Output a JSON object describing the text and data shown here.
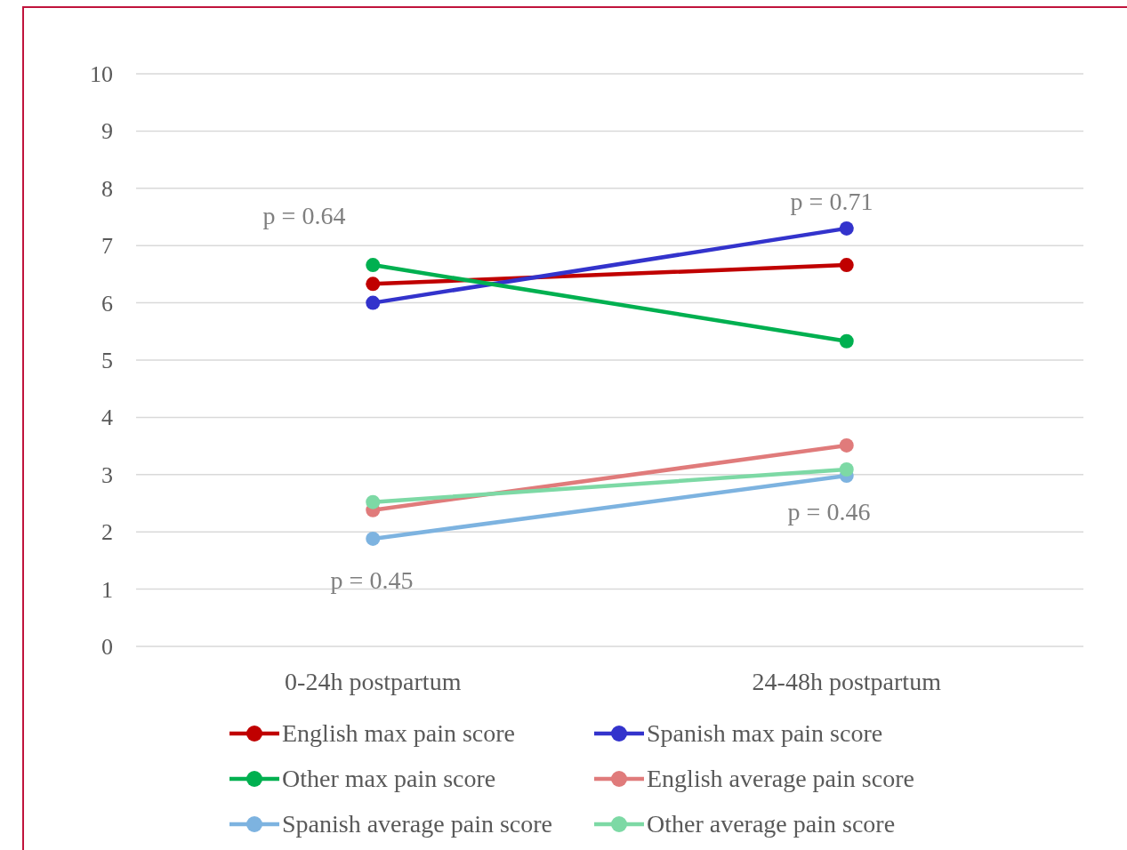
{
  "chart_data": {
    "type": "line",
    "categories": [
      "0-24h postpartum",
      "24-48h postpartum"
    ],
    "series": [
      {
        "name": "English max pain score",
        "color": "#c00000",
        "values": [
          6.33,
          6.66
        ]
      },
      {
        "name": "Spanish max pain score",
        "color": "#3333cc",
        "values": [
          6.0,
          7.3
        ]
      },
      {
        "name": "Other max pain score",
        "color": "#00b050",
        "values": [
          6.66,
          5.33
        ]
      },
      {
        "name": "English average pain score",
        "color": "#e07b7b",
        "values": [
          2.38,
          3.51
        ]
      },
      {
        "name": "Spanish average pain score",
        "color": "#7db3e0",
        "values": [
          1.88,
          2.98
        ]
      },
      {
        "name": "Other average pain score",
        "color": "#7dd9a5",
        "values": [
          2.52,
          3.09
        ]
      }
    ],
    "ylim": [
      0,
      10
    ],
    "yticks": [
      0,
      1,
      2,
      3,
      4,
      5,
      6,
      7,
      8,
      9,
      10
    ],
    "grid": "y",
    "legend": "bottom",
    "marker": "circle",
    "line_style": "solid",
    "annotations": [
      "p = 0.64",
      "p = 0.71",
      "p = 0.46",
      "p = 0.45"
    ]
  }
}
